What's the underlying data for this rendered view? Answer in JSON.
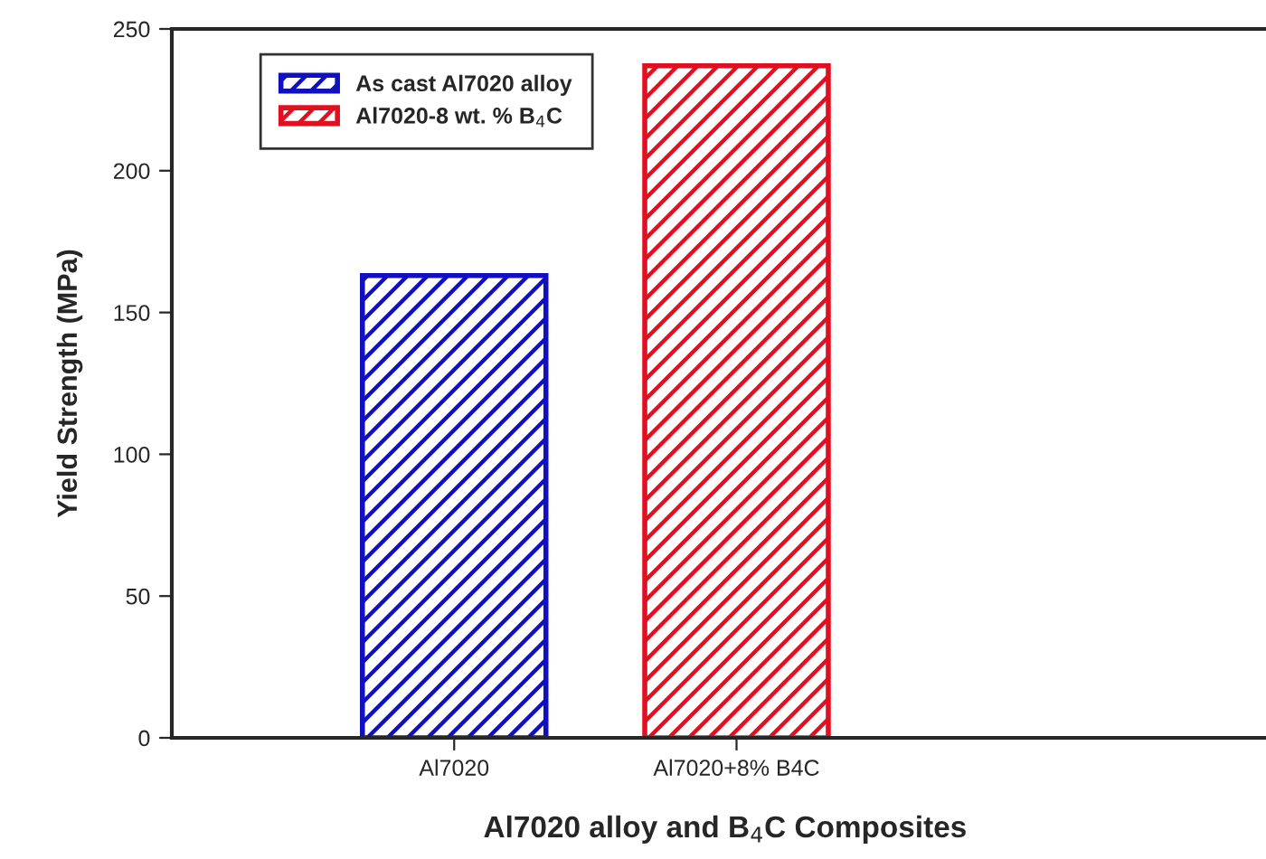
{
  "chart_data": {
    "type": "bar",
    "xlabel": "Al7020 alloy and B$_{4}$C Composites",
    "ylabel": "Yield Strength (MPa)",
    "categories": [
      "Al7020",
      "Al7020+8% B4C"
    ],
    "series": [
      {
        "name": "As cast Al7020 alloy",
        "color": "#1010c0",
        "values": [
          163,
          null
        ]
      },
      {
        "name": "Al7020-8 wt. % B$_{4}$C",
        "color": "#e01020",
        "values": [
          null,
          237
        ]
      }
    ],
    "ylim": [
      0,
      250
    ],
    "yticks": [
      0,
      50,
      100,
      150,
      200,
      250
    ],
    "grid": false,
    "legend": "top left"
  }
}
